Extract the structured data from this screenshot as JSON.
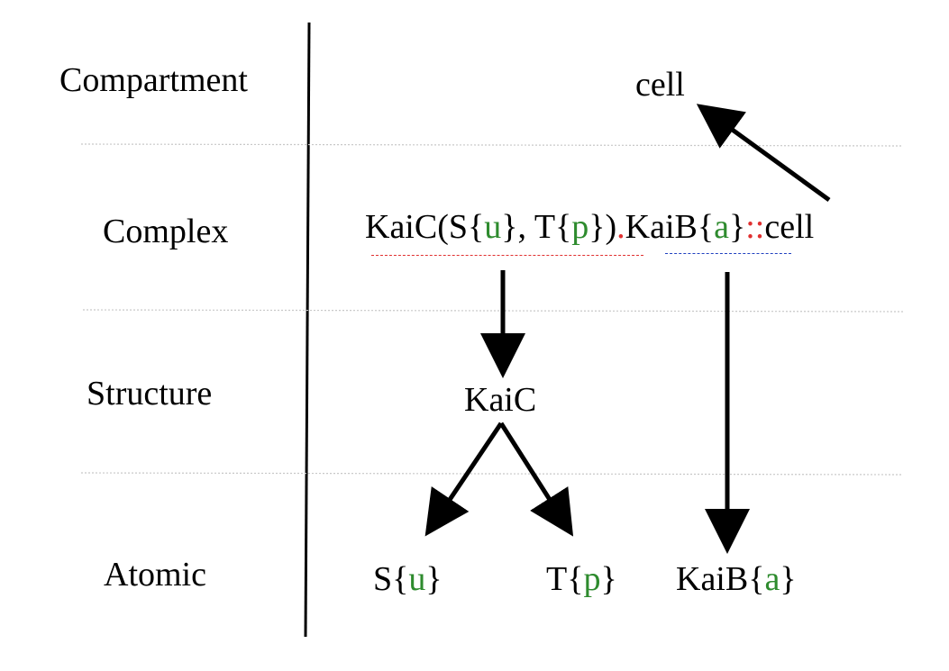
{
  "levels": {
    "compartment": "Compartment",
    "complex": "Complex",
    "structure": "Structure",
    "atomic": "Atomic"
  },
  "compartment_node": "cell",
  "complex_expr": {
    "kaic": "KaiC(",
    "s": "S{",
    "u": "u",
    "close1": "}",
    "comma_t": ", T{",
    "p": "p",
    "close2": "})",
    "dot": ".",
    "kaib": "KaiB{",
    "a": "a",
    "close3": "}",
    "coloncolon": "::",
    "cell": "cell"
  },
  "structure_node": "KaiC",
  "atomic_nodes": {
    "s": {
      "prefix": "S{",
      "state": "u",
      "suffix": "}"
    },
    "t": {
      "prefix": "T{",
      "state": "p",
      "suffix": "}"
    },
    "kaib": {
      "prefix": "KaiB{",
      "state": "a",
      "suffix": "}"
    }
  },
  "colors": {
    "state": "#2e8b2e",
    "separator": "#e03030",
    "kaic_underline": "#e03030",
    "kaib_underline": "#2040c0",
    "grid": "#c8c8c8"
  }
}
